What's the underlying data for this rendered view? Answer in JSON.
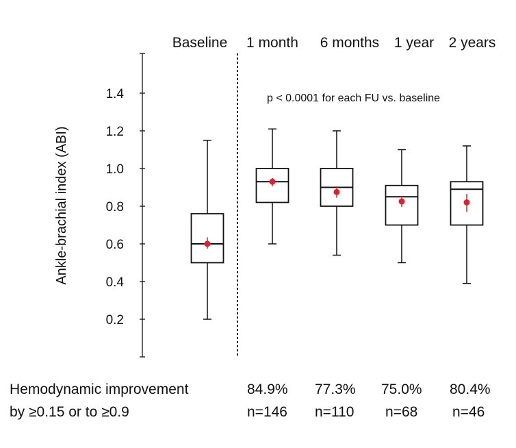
{
  "chart_data": {
    "type": "box",
    "ylabel": "Ankle-brachial index (ABI)",
    "ylim": [
      0.0,
      1.6
    ],
    "yticks": [
      0.2,
      0.4,
      0.6,
      0.8,
      1.0,
      1.2,
      1.4
    ],
    "ytick_labels": [
      "0.2",
      "0.4",
      "0.6",
      "0.8",
      "1.0",
      "1.2",
      "1.4"
    ],
    "categories": [
      "Baseline",
      "1 month",
      "6 months",
      "1 year",
      "2 years"
    ],
    "boxes": [
      {
        "category": "Baseline",
        "whisker_low": 0.2,
        "q1": 0.5,
        "median": 0.6,
        "q3": 0.76,
        "whisker_high": 1.15,
        "mean": 0.6,
        "mean_ci": [
          0.575,
          0.635
        ]
      },
      {
        "category": "1 month",
        "whisker_low": 0.6,
        "q1": 0.82,
        "median": 0.93,
        "q3": 1.0,
        "whisker_high": 1.21,
        "mean": 0.93,
        "mean_ci": [
          0.905,
          0.95
        ]
      },
      {
        "category": "6 months",
        "whisker_low": 0.54,
        "q1": 0.8,
        "median": 0.9,
        "q3": 1.0,
        "whisker_high": 1.2,
        "mean": 0.875,
        "mean_ci": [
          0.845,
          0.905
        ]
      },
      {
        "category": "1 year",
        "whisker_low": 0.5,
        "q1": 0.7,
        "median": 0.85,
        "q3": 0.91,
        "whisker_high": 1.1,
        "mean": 0.825,
        "mean_ci": [
          0.795,
          0.855
        ]
      },
      {
        "category": "2 years",
        "whisker_low": 0.39,
        "q1": 0.7,
        "median": 0.89,
        "q3": 0.93,
        "whisker_high": 1.12,
        "mean": 0.82,
        "mean_ci": [
          0.77,
          0.865
        ]
      }
    ],
    "mean_marker_color": "#e0202e",
    "annotation": "p < 0.0001 for each FU vs. baseline",
    "separator": "dotted line between Baseline and follow-up groups",
    "footer": {
      "label_line1": "Hemodynamic improvement",
      "label_line2": "by ≥0.15 or to ≥0.9",
      "percentages": [
        "84.9%",
        "77.3%",
        "75.0%",
        "80.4%"
      ],
      "counts": [
        "n=146",
        "n=110",
        "n=68",
        "n=46"
      ]
    }
  }
}
